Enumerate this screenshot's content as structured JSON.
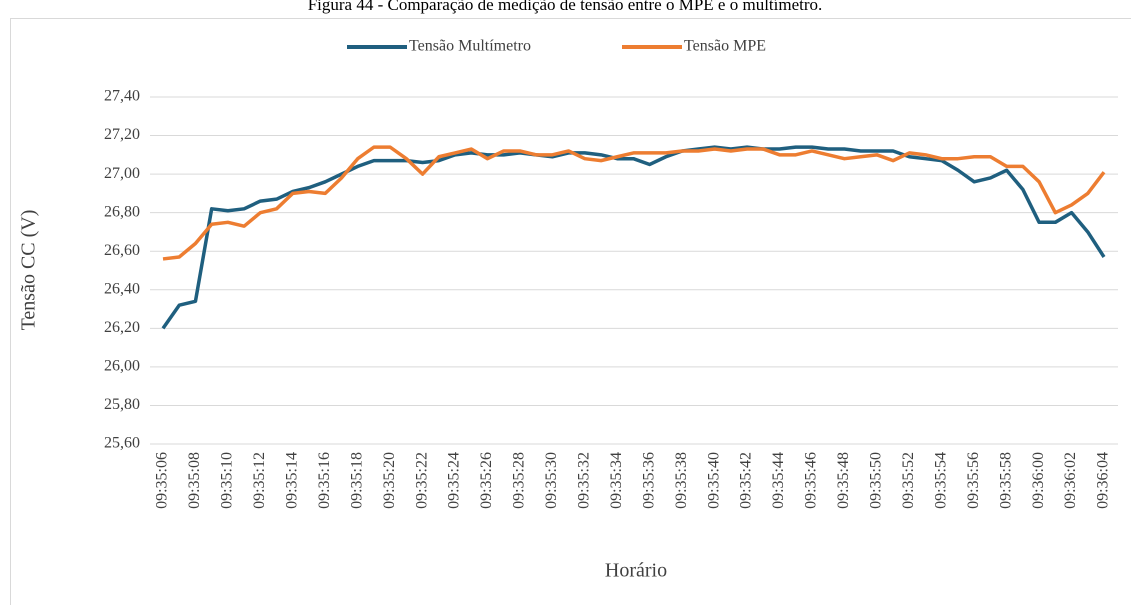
{
  "chart_data": {
    "type": "line",
    "title": "Figura 44 - Comparação de medição de tensão entre o MPE e o multímetro.",
    "x_label": "Horário",
    "y_label": "Tensão CC (V)",
    "categories": [
      "09:35:06",
      null,
      "09:35:08",
      null,
      "09:35:10",
      null,
      "09:35:12",
      null,
      "09:35:14",
      null,
      "09:35:16",
      null,
      "09:35:18",
      null,
      "09:35:20",
      null,
      "09:35:22",
      null,
      "09:35:24",
      null,
      "09:35:26",
      null,
      "09:35:28",
      null,
      "09:35:30",
      null,
      "09:35:32",
      null,
      "09:35:34",
      null,
      "09:35:36",
      null,
      "09:35:38",
      null,
      "09:35:40",
      null,
      "09:35:42",
      null,
      "09:35:44",
      null,
      "09:35:46",
      null,
      "09:35:48",
      null,
      "09:35:50",
      null,
      "09:35:52",
      null,
      "09:35:54",
      null,
      "09:35:56",
      null,
      "09:35:58",
      null,
      "09:36:00",
      null,
      "09:36:02",
      null,
      "09:36:04"
    ],
    "series": [
      {
        "name": "Tensão Multímetro",
        "color": "#1f5f7f",
        "values": [
          26.2,
          26.32,
          26.34,
          26.82,
          26.81,
          26.82,
          26.86,
          26.87,
          26.91,
          26.93,
          26.96,
          27.0,
          27.04,
          27.07,
          27.07,
          27.07,
          27.06,
          27.07,
          27.1,
          27.11,
          27.1,
          27.1,
          27.11,
          27.1,
          27.09,
          27.11,
          27.11,
          27.1,
          27.08,
          27.08,
          27.05,
          27.09,
          27.12,
          27.13,
          27.14,
          27.13,
          27.14,
          27.13,
          27.13,
          27.14,
          27.14,
          27.13,
          27.13,
          27.12,
          27.12,
          27.12,
          27.09,
          27.08,
          27.07,
          27.02,
          26.96,
          26.98,
          27.02,
          26.92,
          26.75,
          26.75,
          26.8,
          26.7,
          26.57
        ]
      },
      {
        "name": "Tensão MPE",
        "color": "#ed7d31",
        "values": [
          26.56,
          26.57,
          26.64,
          26.74,
          26.75,
          26.73,
          26.8,
          26.82,
          26.9,
          26.91,
          26.9,
          26.98,
          27.08,
          27.14,
          27.14,
          27.08,
          27.0,
          27.09,
          27.11,
          27.13,
          27.08,
          27.12,
          27.12,
          27.1,
          27.1,
          27.12,
          27.08,
          27.07,
          27.09,
          27.11,
          27.11,
          27.11,
          27.12,
          27.12,
          27.13,
          27.12,
          27.13,
          27.13,
          27.1,
          27.1,
          27.12,
          27.1,
          27.08,
          27.09,
          27.1,
          27.07,
          27.11,
          27.1,
          27.08,
          27.08,
          27.09,
          27.09,
          27.04,
          27.04,
          26.96,
          26.8,
          26.84,
          26.9,
          27.01
        ]
      }
    ],
    "ylim": [
      25.6,
      27.4
    ],
    "yticks": [
      {
        "value": 25.6,
        "label": "25,60"
      },
      {
        "value": 25.8,
        "label": "25,80"
      },
      {
        "value": 26.0,
        "label": "26,00"
      },
      {
        "value": 26.2,
        "label": "26,20"
      },
      {
        "value": 26.4,
        "label": "26,40"
      },
      {
        "value": 26.6,
        "label": "26,60"
      },
      {
        "value": 26.8,
        "label": "26,80"
      },
      {
        "value": 27.0,
        "label": "27,00"
      },
      {
        "value": 27.2,
        "label": "27,20"
      },
      {
        "value": 27.4,
        "label": "27,40"
      }
    ],
    "grid": true,
    "legend": "top"
  }
}
